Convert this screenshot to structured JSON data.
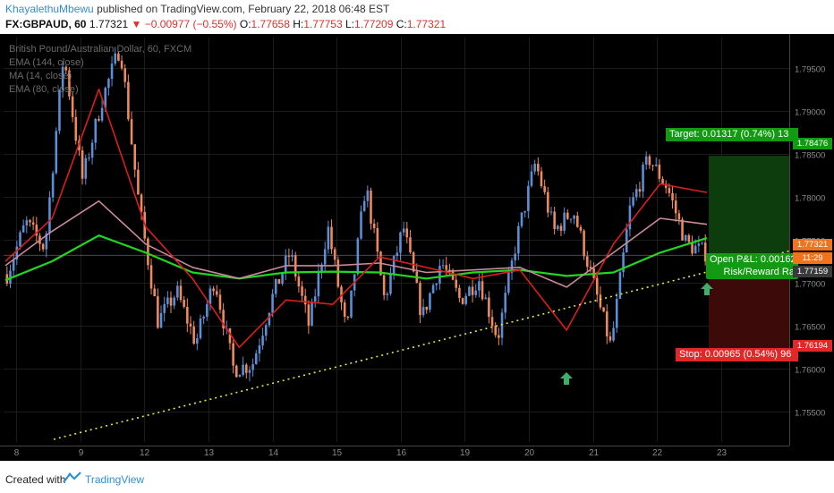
{
  "header": {
    "author": "KhayalethuMbewu",
    "published": " published on TradingView.com, February 22, 2018 06:48 EST",
    "symbol_line_prefix": "FX:GBPAUD, 60",
    "last": "1.77321",
    "change": "▼ −0.00977 (−0.55%)",
    "o_label": "O:",
    "o_val": "1.77658",
    "h_label": "H:",
    "h_val": "1.77753",
    "l_label": "L:",
    "l_val": "1.77209",
    "c_label": "C:",
    "c_val": "1.77321"
  },
  "legend": {
    "title": "British Pound/Australian Dollar, 60, FXCM",
    "ema144": "EMA (144, close)",
    "ma14": "MA (14, close)",
    "ema80": "EMA (80, close)"
  },
  "price_boxes": {
    "target": "1.78476",
    "last": "1.77321",
    "timer": "11:29",
    "entry": "1.77159",
    "stop": "1.76194"
  },
  "position": {
    "target_label": "Target: 0.01317 (0.74%) 13",
    "stop_label": "Stop: 0.00965 (0.54%) 96",
    "pnl_label": "Open P&L: 0.00162",
    "rr_label": "Risk/Reward Ra"
  },
  "footer": {
    "created": "Created with",
    "brand": "TradingView"
  },
  "colors": {
    "bull": "#5b8fd6",
    "bear": "#f08a5d",
    "ema144": "#22d622",
    "ma14": "#d91e1e",
    "ema80": "#c98a9a",
    "target_zone": "#0d3d0d",
    "stop_zone": "#3d0a0a"
  },
  "chart_data": {
    "type": "candlestick",
    "y_ticks": [
      1.755,
      1.76,
      1.765,
      1.77,
      1.775,
      1.78,
      1.785,
      1.79,
      1.795
    ],
    "y_tick_labels": [
      "1.75500",
      "1.76000",
      "1.76500",
      "1.77000",
      "1.77500",
      "1.78000",
      "1.78500",
      "1.79000",
      "1.79500"
    ],
    "ylim": [
      1.7515,
      1.7985
    ],
    "x_labels": [
      "8",
      "9",
      "12",
      "13",
      "14",
      "15",
      "16",
      "19",
      "20",
      "21",
      "22",
      "23"
    ],
    "ohlc_path": [
      1.771,
      1.777,
      1.774,
      1.7965,
      1.782,
      1.791,
      1.7975,
      1.779,
      1.7655,
      1.769,
      1.763,
      1.7705,
      1.76,
      1.7605,
      1.768,
      1.7735,
      1.765,
      1.7765,
      1.764,
      1.7815,
      1.768,
      1.7765,
      1.766,
      1.7725,
      1.768,
      1.7705,
      1.7635,
      1.775,
      1.784,
      1.776,
      1.7785,
      1.7705,
      1.7625,
      1.7785,
      1.7845,
      1.781,
      1.7745,
      1.7735
    ],
    "series": [
      {
        "name": "EMA (144, close)",
        "values": [
          1.7703,
          1.7725,
          1.7755,
          1.7735,
          1.7712,
          1.7705,
          1.7712,
          1.7713,
          1.7712,
          1.7705,
          1.7712,
          1.7715,
          1.7708,
          1.7712,
          1.7735,
          1.7752
        ]
      },
      {
        "name": "MA (14, close)",
        "values": [
          1.7725,
          1.7775,
          1.7925,
          1.7765,
          1.7705,
          1.7625,
          1.768,
          1.7675,
          1.773,
          1.7718,
          1.7705,
          1.7715,
          1.7645,
          1.7745,
          1.7815,
          1.7805
        ]
      },
      {
        "name": "EMA (80, close)",
        "values": [
          1.772,
          1.776,
          1.7795,
          1.7745,
          1.7718,
          1.7705,
          1.772,
          1.772,
          1.7723,
          1.7712,
          1.7715,
          1.7718,
          1.7695,
          1.7735,
          1.7775,
          1.7768
        ]
      }
    ],
    "trendline": [
      1.7515,
      1.7737
    ],
    "position_levels": {
      "target": 1.78476,
      "entry": 1.77159,
      "stop": 1.76194
    }
  }
}
